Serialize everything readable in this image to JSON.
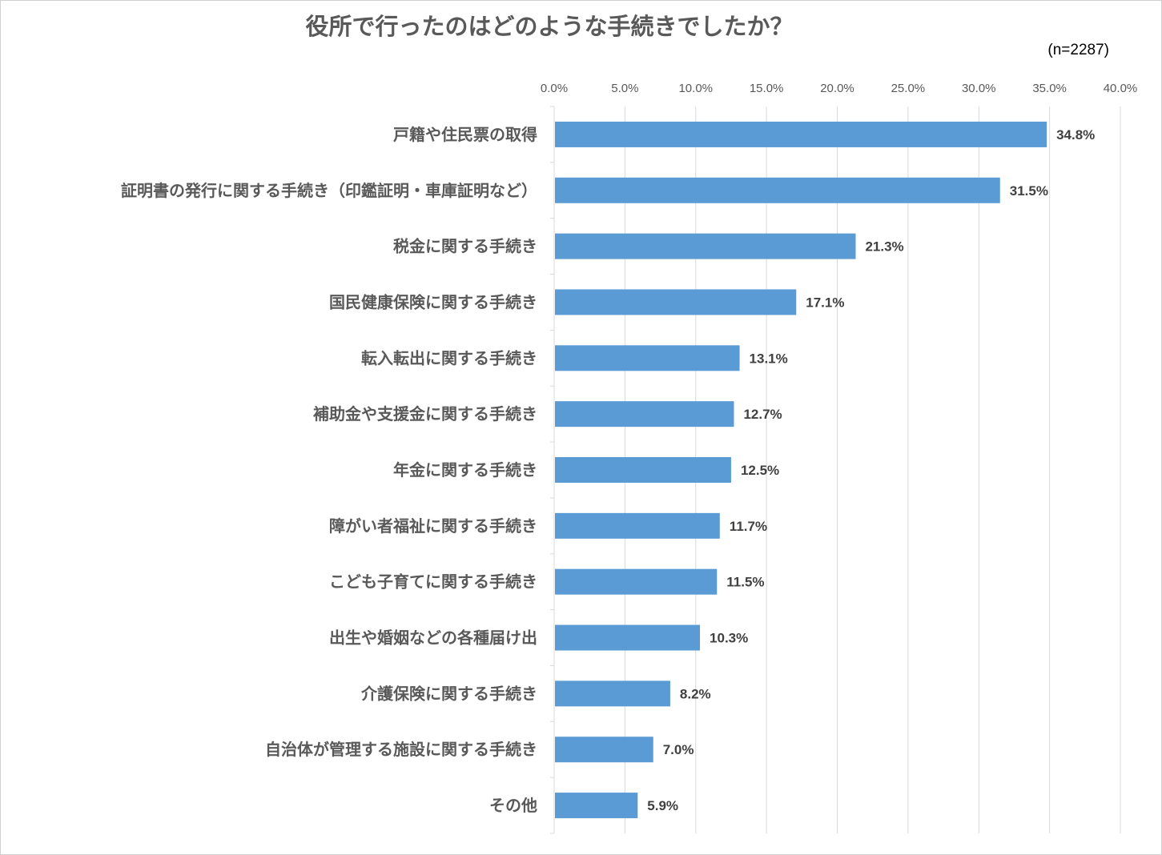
{
  "chart_data": {
    "type": "bar",
    "orientation": "horizontal",
    "title": "役所で行ったのはどのような手続きでしたか？",
    "note": "(n=2287)",
    "categories": [
      "戸籍や住民票の取得",
      "証明書の発行に関する手続き（印鑑証明・車庫証明など）",
      "税金に関する手続き",
      "国民健康保険に関する手続き",
      "転入転出に関する手続き",
      "補助金や支援金に関する手続き",
      "年金に関する手続き",
      "障がい者福祉に関する手続き",
      "こども子育てに関する手続き",
      "出生や婚姻などの各種届け出",
      "介護保険に関する手続き",
      "自治体が管理する施設に関する手続き",
      "その他"
    ],
    "values": [
      34.8,
      31.5,
      21.3,
      17.1,
      13.1,
      12.7,
      12.5,
      11.7,
      11.5,
      10.3,
      8.2,
      7.0,
      5.9
    ],
    "value_labels": [
      "34.8%",
      "31.5%",
      "21.3%",
      "17.1%",
      "13.1%",
      "12.7%",
      "12.5%",
      "11.7%",
      "11.5%",
      "10.3%",
      "8.2%",
      "7.0%",
      "5.9%"
    ],
    "xlim": [
      0,
      40
    ],
    "xticks": [
      "0.0%",
      "5.0%",
      "10.0%",
      "15.0%",
      "20.0%",
      "25.0%",
      "30.0%",
      "35.0%",
      "40.0%"
    ],
    "axis_position": "top",
    "grid": true,
    "bar_color": "#5b9bd5"
  }
}
